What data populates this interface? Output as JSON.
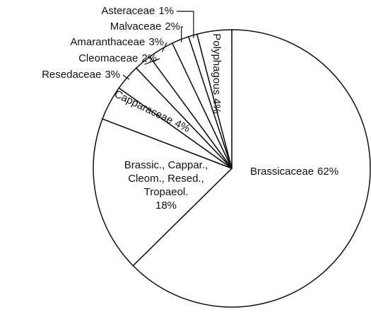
{
  "chart_data": {
    "type": "pie",
    "categories": [
      "Brassicaceae",
      "Brassic., Cappar., Cleom., Resed., Tropaeol.",
      "Capparaceae",
      "Resedaceae",
      "Cleomaceae",
      "Amaranthaceae",
      "Malvaceae",
      "Asteraceae",
      "Polyphagous"
    ],
    "values": [
      62,
      18,
      4,
      3,
      2,
      3,
      2,
      1,
      4
    ],
    "value_labels": [
      "62%",
      "18%",
      "4%",
      "3%",
      "2%",
      "3%",
      "2%",
      "1%",
      "4%"
    ],
    "color": "#ffffff"
  }
}
